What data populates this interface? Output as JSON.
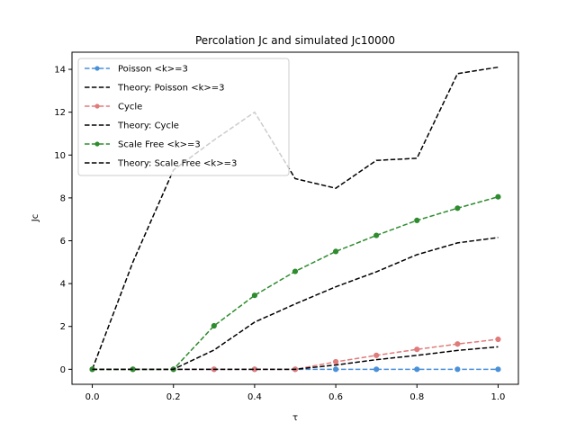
{
  "chart_data": {
    "type": "line",
    "title": "Percolation Jc and simulated Jc10000",
    "xlabel": "τ",
    "ylabel": "Jc",
    "xlim": [
      -0.05,
      1.05
    ],
    "ylim": [
      -0.7,
      14.8
    ],
    "xticks": [
      0.0,
      0.2,
      0.4,
      0.6,
      0.8,
      1.0
    ],
    "xtick_labels": [
      "0.0",
      "0.2",
      "0.4",
      "0.6",
      "0.8",
      "1.0"
    ],
    "yticks": [
      0,
      2,
      4,
      6,
      8,
      10,
      12,
      14
    ],
    "ytick_labels": [
      "0",
      "2",
      "4",
      "6",
      "8",
      "10",
      "12",
      "14"
    ],
    "grid": false,
    "legend_position": "top-left",
    "x": [
      0.0,
      0.1,
      0.2,
      0.3,
      0.4,
      0.5,
      0.6,
      0.7,
      0.8,
      0.9,
      1.0
    ],
    "series": [
      {
        "name": "Poisson <k>=3",
        "color": "#4a90d9",
        "style": "dashed-marker",
        "values": [
          0,
          0,
          0,
          0,
          0,
          0,
          0,
          0,
          0,
          0,
          0
        ]
      },
      {
        "name": "Theory: Poisson <k>=3",
        "color": "#000000",
        "style": "dashed",
        "values": [
          0,
          5.0,
          9.3,
          10.7,
          12.0,
          8.9,
          8.45,
          9.75,
          9.85,
          13.8,
          14.1
        ]
      },
      {
        "name": "Cycle",
        "color": "#e07b7b",
        "style": "dashed-marker",
        "values": [
          0,
          0,
          0,
          0,
          0,
          0,
          0.35,
          0.65,
          0.93,
          1.18,
          1.4
        ]
      },
      {
        "name": "Theory: Cycle",
        "color": "#000000",
        "style": "dashed",
        "values": [
          0,
          0,
          0,
          0,
          0,
          0,
          0.2,
          0.45,
          0.65,
          0.88,
          1.05
        ]
      },
      {
        "name": "Scale Free <k>=3",
        "color": "#2e8b2e",
        "style": "dashed-marker",
        "values": [
          0,
          0,
          0,
          2.03,
          3.45,
          4.57,
          5.5,
          6.25,
          6.95,
          7.52,
          8.05
        ]
      },
      {
        "name": "Theory: Scale Free <k>=3",
        "color": "#000000",
        "style": "dashed",
        "values": [
          0,
          0,
          0,
          0.9,
          2.2,
          3.05,
          3.85,
          4.55,
          5.35,
          5.9,
          6.15
        ]
      }
    ]
  }
}
